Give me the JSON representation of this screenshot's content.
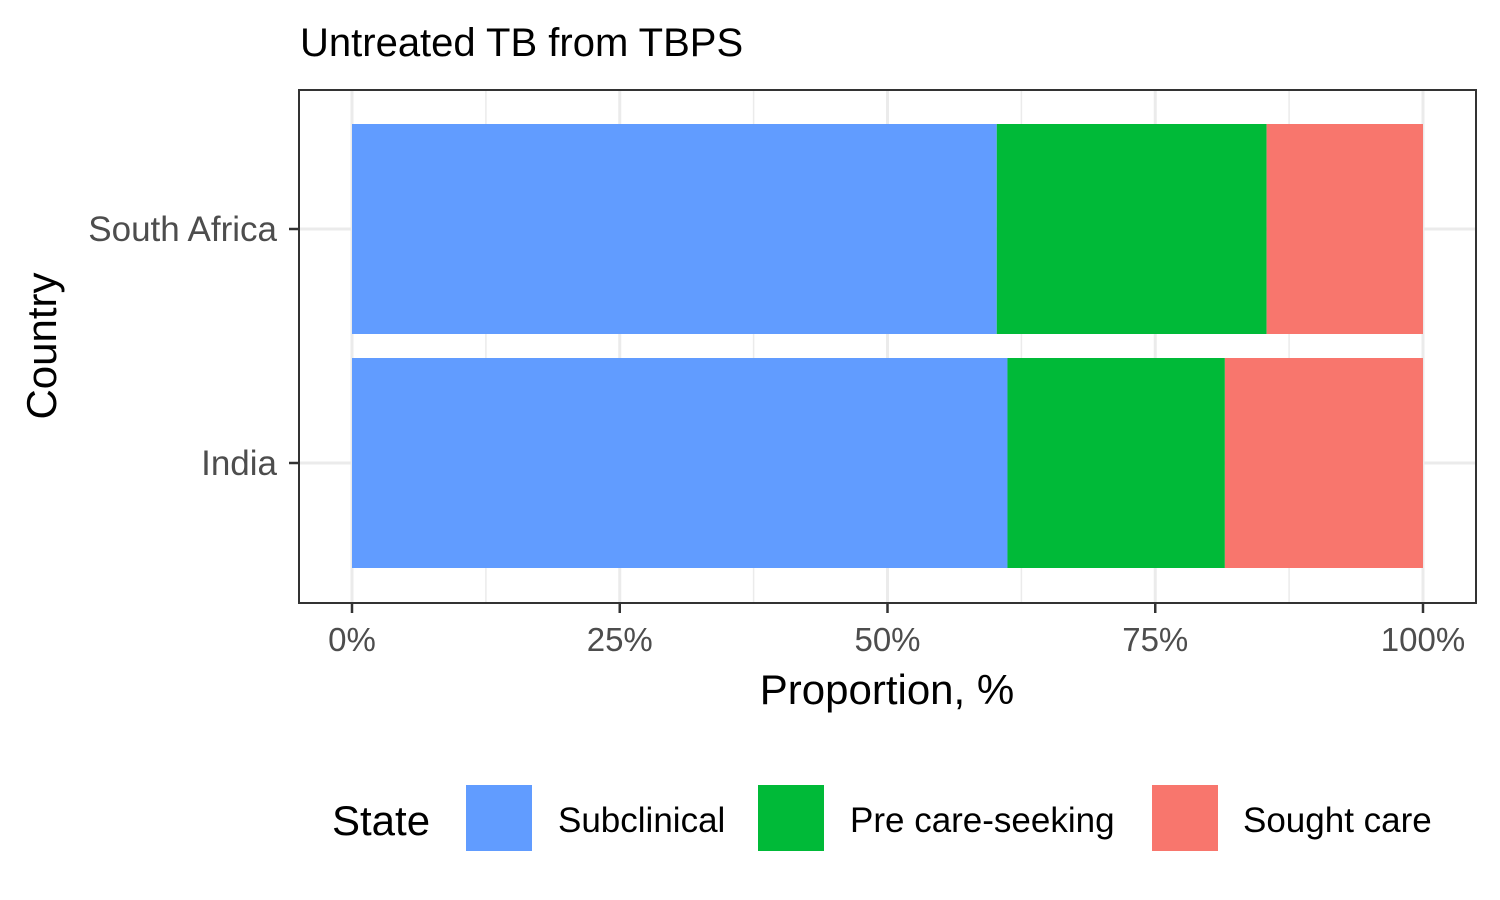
{
  "chart_data": {
    "type": "bar",
    "orientation": "horizontal",
    "stacked": true,
    "title": "Untreated TB from TBPS",
    "xlabel": "Proportion, %",
    "ylabel": "Country",
    "xlim": [
      0,
      100
    ],
    "x_ticks": [
      "0%",
      "25%",
      "50%",
      "75%",
      "100%"
    ],
    "categories": [
      "India",
      "South Africa"
    ],
    "series": [
      {
        "name": "Subclinical",
        "color": "#619CFF",
        "values": [
          61.2,
          60.2
        ]
      },
      {
        "name": "Pre care-seeking",
        "color": "#00BA38",
        "values": [
          20.3,
          25.2
        ]
      },
      {
        "name": "Sought care",
        "color": "#F8766D",
        "values": [
          18.5,
          14.6
        ]
      }
    ],
    "grid": true,
    "legend": {
      "title": "State",
      "position": "bottom",
      "entries": [
        "Subclinical",
        "Pre care-seeking",
        "Sought care"
      ]
    }
  }
}
